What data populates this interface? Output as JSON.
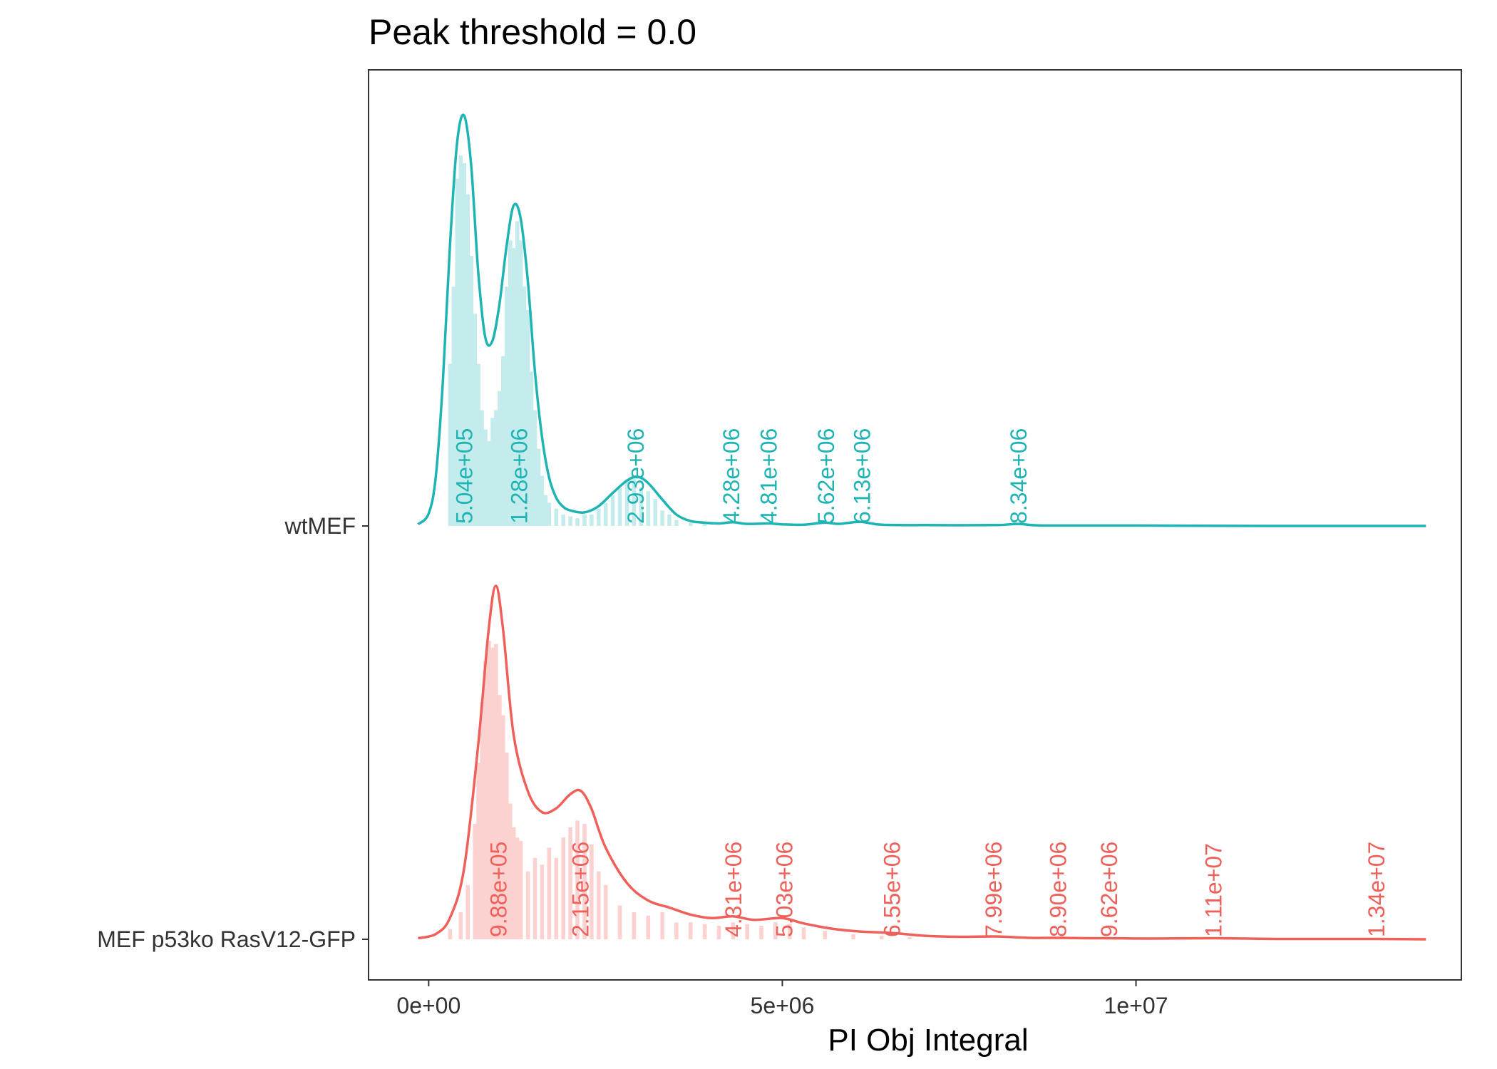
{
  "chart_data": {
    "type": "ridgeline-density-histogram",
    "title": "Peak threshold = 0.0",
    "xlabel": "PI Obj Integral",
    "ylabel": "",
    "xlim": [
      -850000,
      14600000
    ],
    "x_ticks": [
      {
        "value": 0,
        "label": "0e+00"
      },
      {
        "value": 5000000,
        "label": "5e+06"
      },
      {
        "value": 10000000,
        "label": "1e+07"
      }
    ],
    "y_categories": [
      "MEF p53ko RasV12-GFP",
      "wtMEF"
    ],
    "grid": false,
    "legend": "none",
    "series": [
      {
        "name": "wtMEF",
        "color": "#1FB4B4",
        "fill_color": "#C5ECEC",
        "peaks": [
          {
            "x": 504000,
            "label": "5.04e+05"
          },
          {
            "x": 1280000,
            "label": "1.28e+06"
          },
          {
            "x": 2930000,
            "label": "2.93e+06"
          },
          {
            "x": 4280000,
            "label": "4.28e+06"
          },
          {
            "x": 4810000,
            "label": "4.81e+06"
          },
          {
            "x": 5620000,
            "label": "5.62e+06"
          },
          {
            "x": 6130000,
            "label": "6.13e+06"
          },
          {
            "x": 8340000,
            "label": "8.34e+06"
          }
        ],
        "density": [
          [
            -150000,
            0.004
          ],
          [
            0,
            0.03
          ],
          [
            100000,
            0.12
          ],
          [
            200000,
            0.35
          ],
          [
            300000,
            0.68
          ],
          [
            400000,
            0.93
          ],
          [
            500000,
            1.0
          ],
          [
            600000,
            0.88
          ],
          [
            700000,
            0.62
          ],
          [
            800000,
            0.46
          ],
          [
            900000,
            0.45
          ],
          [
            1000000,
            0.54
          ],
          [
            1100000,
            0.68
          ],
          [
            1200000,
            0.78
          ],
          [
            1300000,
            0.75
          ],
          [
            1400000,
            0.6
          ],
          [
            1500000,
            0.38
          ],
          [
            1600000,
            0.22
          ],
          [
            1700000,
            0.12
          ],
          [
            1800000,
            0.07
          ],
          [
            1900000,
            0.047
          ],
          [
            2000000,
            0.038
          ],
          [
            2200000,
            0.033
          ],
          [
            2400000,
            0.048
          ],
          [
            2600000,
            0.08
          ],
          [
            2800000,
            0.11
          ],
          [
            2950000,
            0.12
          ],
          [
            3100000,
            0.105
          ],
          [
            3300000,
            0.065
          ],
          [
            3500000,
            0.028
          ],
          [
            3700000,
            0.012
          ],
          [
            3900000,
            0.008
          ],
          [
            4100000,
            0.006
          ],
          [
            4300000,
            0.009
          ],
          [
            4500000,
            0.005
          ],
          [
            4800000,
            0.006
          ],
          [
            5000000,
            0.004
          ],
          [
            5300000,
            0.003
          ],
          [
            5600000,
            0.008
          ],
          [
            5800000,
            0.005
          ],
          [
            6100000,
            0.01
          ],
          [
            6400000,
            0.003
          ],
          [
            7000000,
            0.002
          ],
          [
            8000000,
            0.002
          ],
          [
            8340000,
            0.005
          ],
          [
            8700000,
            0.001
          ],
          [
            10000000,
            0.001
          ],
          [
            12000000,
            0.0
          ],
          [
            14100000,
            0.0
          ]
        ],
        "histogram": [
          [
            300000,
            0.42
          ],
          [
            350000,
            0.62
          ],
          [
            400000,
            0.9
          ],
          [
            450000,
            0.96
          ],
          [
            500000,
            0.94
          ],
          [
            550000,
            0.86
          ],
          [
            600000,
            0.7
          ],
          [
            650000,
            0.55
          ],
          [
            700000,
            0.42
          ],
          [
            750000,
            0.3
          ],
          [
            800000,
            0.25
          ],
          [
            850000,
            0.22
          ],
          [
            900000,
            0.28
          ],
          [
            950000,
            0.3
          ],
          [
            1000000,
            0.35
          ],
          [
            1050000,
            0.44
          ],
          [
            1100000,
            0.62
          ],
          [
            1150000,
            0.74
          ],
          [
            1200000,
            0.72
          ],
          [
            1250000,
            0.79
          ],
          [
            1300000,
            0.74
          ],
          [
            1350000,
            0.62
          ],
          [
            1400000,
            0.56
          ],
          [
            1450000,
            0.4
          ],
          [
            1500000,
            0.3
          ],
          [
            1550000,
            0.2
          ],
          [
            1600000,
            0.13
          ],
          [
            1650000,
            0.08
          ],
          [
            1700000,
            0.06
          ],
          [
            1800000,
            0.045
          ],
          [
            1900000,
            0.03
          ],
          [
            2000000,
            0.025
          ],
          [
            2100000,
            0.02
          ],
          [
            2200000,
            0.03
          ],
          [
            2300000,
            0.03
          ],
          [
            2400000,
            0.045
          ],
          [
            2500000,
            0.06
          ],
          [
            2600000,
            0.08
          ],
          [
            2700000,
            0.1
          ],
          [
            2800000,
            0.12
          ],
          [
            2900000,
            0.13
          ],
          [
            3000000,
            0.1
          ],
          [
            3100000,
            0.09
          ],
          [
            3200000,
            0.07
          ],
          [
            3300000,
            0.04
          ],
          [
            3400000,
            0.03
          ],
          [
            3500000,
            0.015
          ],
          [
            3700000,
            0.008
          ],
          [
            3900000,
            0.005
          ]
        ]
      },
      {
        "name": "MEF p53ko RasV12-GFP",
        "color": "#F0605A",
        "fill_color": "#FCD2D1",
        "peaks": [
          {
            "x": 988000,
            "label": "9.88e+05"
          },
          {
            "x": 2150000,
            "label": "2.15e+06"
          },
          {
            "x": 4310000,
            "label": "4.31e+06"
          },
          {
            "x": 5030000,
            "label": "5.03e+06"
          },
          {
            "x": 6550000,
            "label": "6.55e+06"
          },
          {
            "x": 7990000,
            "label": "7.99e+06"
          },
          {
            "x": 8900000,
            "label": "8.90e+06"
          },
          {
            "x": 9620000,
            "label": "9.62e+06"
          },
          {
            "x": 11100000,
            "label": "1.11e+07"
          },
          {
            "x": 13400000,
            "label": "1.34e+07"
          }
        ],
        "density": [
          [
            -150000,
            0.003
          ],
          [
            100000,
            0.015
          ],
          [
            300000,
            0.06
          ],
          [
            500000,
            0.2
          ],
          [
            700000,
            0.55
          ],
          [
            850000,
            0.88
          ],
          [
            950000,
            1.0
          ],
          [
            1050000,
            0.88
          ],
          [
            1200000,
            0.58
          ],
          [
            1400000,
            0.42
          ],
          [
            1600000,
            0.36
          ],
          [
            1800000,
            0.37
          ],
          [
            2000000,
            0.41
          ],
          [
            2150000,
            0.42
          ],
          [
            2300000,
            0.37
          ],
          [
            2500000,
            0.26
          ],
          [
            2800000,
            0.16
          ],
          [
            3100000,
            0.11
          ],
          [
            3400000,
            0.09
          ],
          [
            3700000,
            0.07
          ],
          [
            4000000,
            0.06
          ],
          [
            4300000,
            0.065
          ],
          [
            4600000,
            0.055
          ],
          [
            5000000,
            0.06
          ],
          [
            5300000,
            0.045
          ],
          [
            5700000,
            0.03
          ],
          [
            6100000,
            0.022
          ],
          [
            6550000,
            0.018
          ],
          [
            7000000,
            0.01
          ],
          [
            7500000,
            0.007
          ],
          [
            8000000,
            0.008
          ],
          [
            8500000,
            0.004
          ],
          [
            8900000,
            0.004
          ],
          [
            9300000,
            0.003
          ],
          [
            9620000,
            0.003
          ],
          [
            10200000,
            0.002
          ],
          [
            11100000,
            0.003
          ],
          [
            12000000,
            0.001
          ],
          [
            13400000,
            0.001
          ],
          [
            14100000,
            0.0
          ]
        ],
        "histogram": [
          [
            300000,
            0.03
          ],
          [
            450000,
            0.08
          ],
          [
            550000,
            0.16
          ],
          [
            650000,
            0.34
          ],
          [
            700000,
            0.52
          ],
          [
            750000,
            0.7
          ],
          [
            800000,
            0.82
          ],
          [
            850000,
            0.88
          ],
          [
            900000,
            0.86
          ],
          [
            950000,
            0.87
          ],
          [
            1000000,
            0.72
          ],
          [
            1050000,
            0.66
          ],
          [
            1100000,
            0.55
          ],
          [
            1150000,
            0.4
          ],
          [
            1200000,
            0.33
          ],
          [
            1250000,
            0.3
          ],
          [
            1300000,
            0.29
          ],
          [
            1400000,
            0.2
          ],
          [
            1500000,
            0.24
          ],
          [
            1600000,
            0.22
          ],
          [
            1700000,
            0.27
          ],
          [
            1800000,
            0.24
          ],
          [
            1900000,
            0.3
          ],
          [
            2000000,
            0.33
          ],
          [
            2100000,
            0.35
          ],
          [
            2200000,
            0.34
          ],
          [
            2300000,
            0.28
          ],
          [
            2400000,
            0.2
          ],
          [
            2500000,
            0.16
          ],
          [
            2700000,
            0.1
          ],
          [
            2900000,
            0.08
          ],
          [
            3100000,
            0.07
          ],
          [
            3300000,
            0.08
          ],
          [
            3500000,
            0.05
          ],
          [
            3700000,
            0.05
          ],
          [
            3900000,
            0.045
          ],
          [
            4100000,
            0.04
          ],
          [
            4300000,
            0.05
          ],
          [
            4500000,
            0.045
          ],
          [
            4700000,
            0.04
          ],
          [
            4900000,
            0.05
          ],
          [
            5100000,
            0.045
          ],
          [
            5300000,
            0.035
          ],
          [
            5600000,
            0.025
          ],
          [
            6000000,
            0.015
          ],
          [
            6400000,
            0.01
          ],
          [
            6800000,
            0.006
          ]
        ]
      }
    ]
  }
}
